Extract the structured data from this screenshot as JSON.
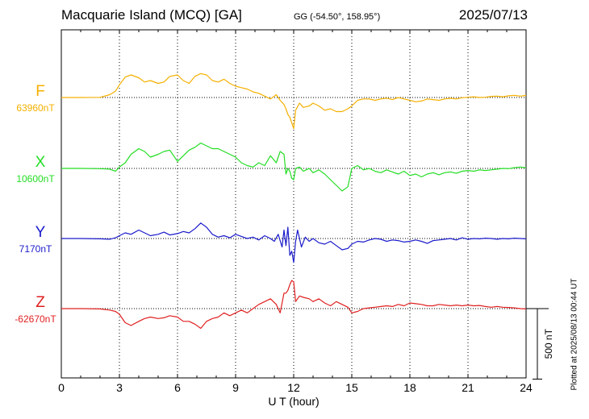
{
  "header": {
    "station": "Macquarie Island (MCQ)  [GA]",
    "coords": "GG (-54.50°, 158.95°)",
    "date": "2025/07/13"
  },
  "footer": {
    "plotted": "Plotted at 2025/08/13 00:44 UT"
  },
  "chart_data": {
    "type": "line",
    "xlabel": "U T (hour)",
    "xlim": [
      0,
      24
    ],
    "xticks": [
      0,
      3,
      6,
      9,
      12,
      15,
      18,
      21,
      24
    ],
    "grid": true,
    "scale_bar": {
      "label": "500 nT",
      "value_nT": 500
    },
    "series": [
      {
        "name": "F",
        "baseline_label": "63960nT",
        "baseline": 63960,
        "color": "#f5b000",
        "x": [
          0,
          1,
          2,
          2.5,
          2.8,
          3,
          3.3,
          3.6,
          4,
          4.3,
          4.6,
          5,
          5.3,
          5.6,
          6,
          6.3,
          6.6,
          6.9,
          7.2,
          7.5,
          7.8,
          8.1,
          8.4,
          8.7,
          9,
          9.3,
          9.6,
          9.9,
          10.2,
          10.5,
          10.8,
          11.1,
          11.3,
          11.5,
          11.6,
          11.7,
          11.8,
          11.9,
          12,
          12.1,
          12.3,
          12.5,
          12.8,
          13,
          13.3,
          13.6,
          13.9,
          14.2,
          14.5,
          14.8,
          15,
          15.3,
          15.6,
          15.9,
          16.2,
          16.5,
          16.8,
          17.1,
          17.4,
          17.7,
          18,
          18.3,
          18.6,
          18.9,
          19.2,
          19.5,
          19.8,
          20.1,
          20.4,
          20.7,
          21,
          21.3,
          21.6,
          21.9,
          22.2,
          22.5,
          22.8,
          23.1,
          23.4,
          23.7,
          24
        ],
        "values": [
          63960,
          63960,
          63961,
          63980,
          64005,
          64050,
          64105,
          64120,
          64100,
          64070,
          64080,
          64060,
          64070,
          64110,
          64120,
          64080,
          64060,
          64110,
          64130,
          64120,
          64080,
          64070,
          64090,
          64060,
          64040,
          64030,
          64020,
          64000,
          63990,
          63970,
          63950,
          63980,
          63940,
          63910,
          63880,
          63840,
          63820,
          63780,
          63740,
          63870,
          63920,
          63890,
          63900,
          63920,
          63900,
          63870,
          63880,
          63860,
          63860,
          63880,
          63900,
          63940,
          63950,
          63950,
          63940,
          63950,
          63955,
          63945,
          63960,
          63950,
          63940,
          63930,
          63935,
          63950,
          63945,
          63940,
          63950,
          63955,
          63950,
          63958,
          63962,
          63965,
          63960,
          63962,
          63968,
          63970,
          63965,
          63972,
          63975,
          63970,
          63975
        ]
      },
      {
        "name": "X",
        "baseline_label": "10600nT",
        "baseline": 10600,
        "color": "#22dd22",
        "x": [
          0,
          1,
          2,
          2.5,
          2.8,
          3,
          3.3,
          3.6,
          4,
          4.3,
          4.6,
          5,
          5.3,
          5.6,
          6,
          6.3,
          6.6,
          6.9,
          7.2,
          7.5,
          7.8,
          8.1,
          8.4,
          8.7,
          9,
          9.3,
          9.6,
          9.9,
          10.2,
          10.5,
          10.8,
          11.1,
          11.3,
          11.5,
          11.6,
          11.7,
          11.8,
          11.9,
          12,
          12.1,
          12.3,
          12.5,
          12.8,
          13,
          13.3,
          13.6,
          13.9,
          14.2,
          14.5,
          14.8,
          15,
          15.3,
          15.6,
          15.9,
          16.2,
          16.5,
          16.8,
          17.1,
          17.4,
          17.7,
          18,
          18.3,
          18.6,
          18.9,
          19.2,
          19.5,
          19.8,
          20.1,
          20.4,
          20.7,
          21,
          21.3,
          21.6,
          21.9,
          22.2,
          22.5,
          22.8,
          23.1,
          23.4,
          23.7,
          24
        ],
        "values": [
          10600,
          10600,
          10598,
          10595,
          10580,
          10610,
          10640,
          10700,
          10740,
          10720,
          10680,
          10700,
          10720,
          10730,
          10650,
          10690,
          10730,
          10750,
          10780,
          10760,
          10740,
          10740,
          10720,
          10700,
          10680,
          10640,
          10620,
          10610,
          10640,
          10620,
          10690,
          10640,
          10720,
          10700,
          10560,
          10600,
          10580,
          10530,
          10520,
          10600,
          10610,
          10580,
          10600,
          10570,
          10590,
          10560,
          10520,
          10480,
          10440,
          10470,
          10600,
          10620,
          10590,
          10600,
          10580,
          10570,
          10590,
          10575,
          10560,
          10580,
          10550,
          10560,
          10540,
          10560,
          10570,
          10555,
          10570,
          10575,
          10565,
          10580,
          10585,
          10580,
          10590,
          10585,
          10590,
          10595,
          10600,
          10598,
          10605,
          10610,
          10605
        ]
      },
      {
        "name": "Y",
        "baseline_label": "7170nT",
        "baseline": 7170,
        "color": "#1a1acc",
        "x": [
          0,
          1,
          2,
          2.5,
          2.8,
          3,
          3.3,
          3.6,
          4,
          4.3,
          4.6,
          5,
          5.3,
          5.6,
          6,
          6.3,
          6.6,
          6.9,
          7.2,
          7.5,
          7.8,
          8.1,
          8.4,
          8.7,
          9,
          9.3,
          9.6,
          9.9,
          10.2,
          10.5,
          10.8,
          11,
          11.2,
          11.4,
          11.5,
          11.6,
          11.7,
          11.8,
          11.9,
          12,
          12.1,
          12.2,
          12.4,
          12.6,
          12.8,
          13,
          13.3,
          13.6,
          13.9,
          14.2,
          14.5,
          14.8,
          15,
          15.3,
          15.6,
          15.9,
          16.2,
          16.5,
          16.8,
          17.1,
          17.4,
          17.7,
          18,
          18.3,
          18.6,
          18.9,
          19.2,
          19.5,
          19.8,
          20.1,
          20.4,
          20.7,
          21,
          21.3,
          21.6,
          21.9,
          22.2,
          22.5,
          22.8,
          23.1,
          23.4,
          23.7,
          24
        ],
        "values": [
          7170,
          7170,
          7168,
          7165,
          7175,
          7190,
          7210,
          7200,
          7230,
          7210,
          7190,
          7200,
          7215,
          7195,
          7205,
          7220,
          7210,
          7240,
          7280,
          7250,
          7200,
          7180,
          7190,
          7175,
          7200,
          7185,
          7170,
          7180,
          7160,
          7190,
          7170,
          7150,
          7200,
          7110,
          7230,
          7120,
          7250,
          7050,
          7080,
          7000,
          7150,
          7230,
          7110,
          7180,
          7150,
          7170,
          7140,
          7130,
          7150,
          7120,
          7090,
          7100,
          7130,
          7150,
          7145,
          7160,
          7170,
          7165,
          7150,
          7160,
          7155,
          7145,
          7150,
          7160,
          7150,
          7135,
          7155,
          7160,
          7165,
          7170,
          7160,
          7175,
          7165,
          7170,
          7168,
          7172,
          7170,
          7165,
          7170,
          7168,
          7172,
          7170,
          7168
        ]
      },
      {
        "name": "Z",
        "baseline_label": "-62670nT",
        "baseline": -62670,
        "color": "#e02020",
        "x": [
          0,
          1,
          2,
          2.5,
          2.8,
          3,
          3.3,
          3.6,
          4,
          4.3,
          4.6,
          5,
          5.3,
          5.6,
          6,
          6.3,
          6.6,
          6.9,
          7.2,
          7.5,
          7.8,
          8.1,
          8.4,
          8.7,
          9,
          9.3,
          9.6,
          9.9,
          10.2,
          10.5,
          10.8,
          11.1,
          11.3,
          11.5,
          11.6,
          11.7,
          11.8,
          11.9,
          12,
          12.1,
          12.3,
          12.5,
          12.8,
          13,
          13.3,
          13.6,
          13.9,
          14.2,
          14.5,
          14.8,
          15,
          15.3,
          15.6,
          15.9,
          16.2,
          16.5,
          16.8,
          17.1,
          17.4,
          17.7,
          18,
          18.3,
          18.6,
          18.9,
          19.2,
          19.5,
          19.8,
          20.1,
          20.4,
          20.7,
          21,
          21.3,
          21.6,
          21.9,
          22.2,
          22.5,
          22.8,
          23.1,
          23.4,
          23.7,
          24
        ],
        "values": [
          -62670,
          -62670,
          -62672,
          -62680,
          -62690,
          -62710,
          -62770,
          -62790,
          -62760,
          -62740,
          -62730,
          -62740,
          -62735,
          -62720,
          -62730,
          -62760,
          -62760,
          -62780,
          -62810,
          -62760,
          -62740,
          -62730,
          -62700,
          -62720,
          -62700,
          -62680,
          -62700,
          -62670,
          -62640,
          -62620,
          -62600,
          -62640,
          -62700,
          -62560,
          -62560,
          -62540,
          -62500,
          -62470,
          -62480,
          -62620,
          -62580,
          -62590,
          -62600,
          -62620,
          -62600,
          -62630,
          -62650,
          -62620,
          -62640,
          -62660,
          -62700,
          -62690,
          -62670,
          -62665,
          -62660,
          -62655,
          -62650,
          -62655,
          -62640,
          -62650,
          -62630,
          -62635,
          -62640,
          -62650,
          -62650,
          -62640,
          -62645,
          -62650,
          -62645,
          -62650,
          -62645,
          -62650,
          -62648,
          -62655,
          -62660,
          -62655,
          -62660,
          -62662,
          -62665,
          -62670,
          -62672
        ]
      }
    ]
  }
}
